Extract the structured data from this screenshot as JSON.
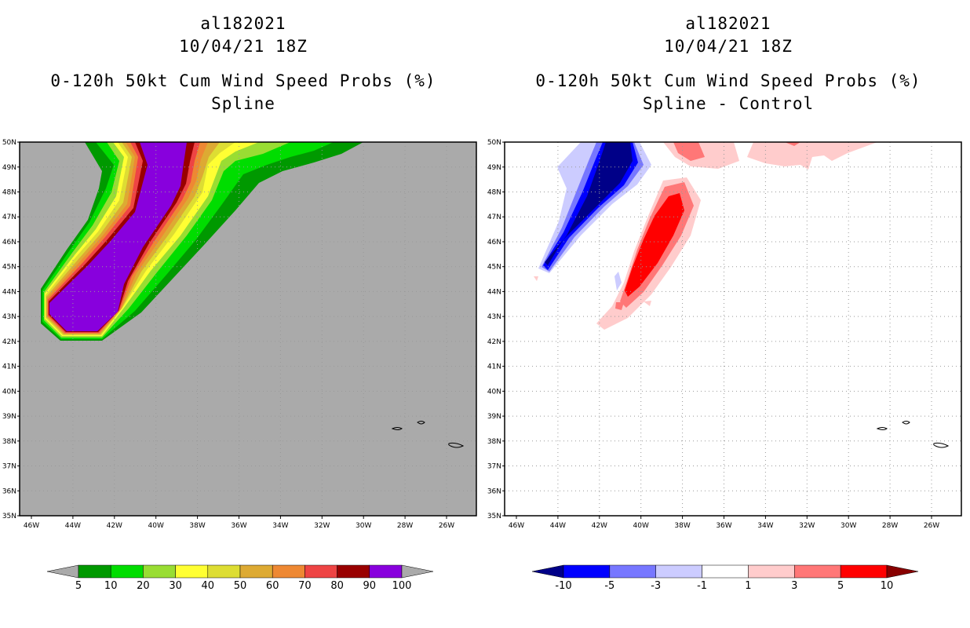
{
  "left_panel": {
    "storm_id": "al182021",
    "datetime": "10/04/21 18Z",
    "product": "0-120h 50kt Cum Wind Speed Probs (%)",
    "method": "Spline"
  },
  "right_panel": {
    "storm_id": "al182021",
    "datetime": "10/04/21 18Z",
    "product": "0-120h 50kt Cum Wind Speed Probs (%)",
    "method": "Spline - Control"
  },
  "axes": {
    "lon_labels": [
      "46W",
      "44W",
      "42W",
      "40W",
      "38W",
      "36W",
      "34W",
      "32W",
      "30W",
      "28W",
      "26W"
    ],
    "lat_labels": [
      "35N",
      "36N",
      "37N",
      "38N",
      "39N",
      "40N",
      "41N",
      "42N",
      "43N",
      "44N",
      "45N",
      "46N",
      "47N",
      "48N",
      "49N",
      "50N"
    ]
  },
  "left_colorbar": {
    "labels": [
      "5",
      "10",
      "20",
      "30",
      "40",
      "50",
      "60",
      "70",
      "80",
      "90",
      "100"
    ],
    "colors": [
      "#009900",
      "#00dd00",
      "#99dd33",
      "#ffff33",
      "#dddd33",
      "#ddaa33",
      "#ee8833",
      "#ee4444",
      "#990000",
      "#8800dd"
    ],
    "under_color": "#aaaaaa",
    "over_color": "#aaaaaa"
  },
  "right_colorbar": {
    "labels": [
      "-10",
      "-5",
      "-3",
      "-1",
      "1",
      "3",
      "5",
      "10"
    ],
    "colors": [
      "#0000ff",
      "#7777ff",
      "#ccccff",
      "#ffffff",
      "#ffcccc",
      "#ff7777",
      "#ff0000"
    ],
    "under_color": "#000088",
    "over_color": "#880000"
  },
  "map_colors": {
    "background_left": "#aaaaaa",
    "background_right": "#ffffff",
    "grid": "#999999"
  }
}
